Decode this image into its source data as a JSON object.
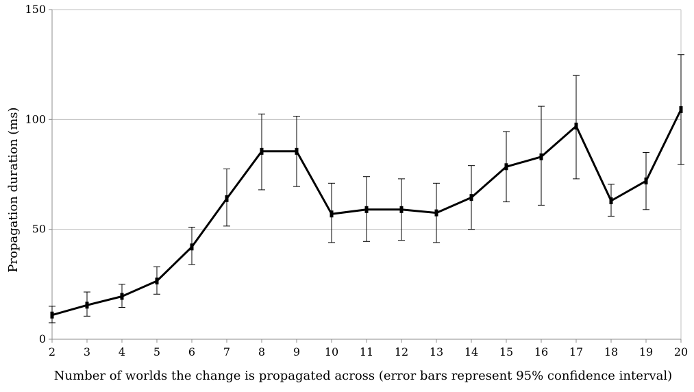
{
  "chart_data": {
    "type": "line",
    "title": "",
    "xlabel": "Number of worlds the change is propagated across (error bars represent 95% confidence interval)",
    "ylabel": "Propagation duration (ms)",
    "x": [
      2,
      3,
      4,
      5,
      6,
      7,
      8,
      9,
      10,
      11,
      12,
      13,
      14,
      15,
      16,
      17,
      18,
      19,
      20
    ],
    "series": [
      {
        "values": [
          11,
          15.5,
          19.5,
          26.5,
          42,
          64,
          85.5,
          85.5,
          57,
          59,
          59,
          57.5,
          64.5,
          78.5,
          83,
          97,
          63,
          72,
          104.5
        ],
        "ci_lower": [
          7.5,
          10.5,
          14.5,
          20.5,
          34,
          51.5,
          68,
          69.5,
          44,
          44.5,
          45,
          44,
          50,
          62.5,
          61,
          73,
          56,
          59,
          79.5
        ],
        "ci_upper": [
          15,
          21.5,
          25,
          33,
          51,
          77.5,
          102.5,
          101.5,
          71,
          74,
          73,
          71,
          79,
          94.5,
          106,
          120,
          70.5,
          85,
          129.5
        ]
      }
    ],
    "xlim": [
      2,
      20
    ],
    "ylim": [
      0,
      150
    ],
    "yticks": [
      0,
      50,
      100,
      150
    ],
    "grid": "horizontal",
    "legend": "none",
    "colors": {
      "line": "#000000",
      "grid": "#bfbfbf",
      "axis": "#8c8c8c"
    }
  }
}
